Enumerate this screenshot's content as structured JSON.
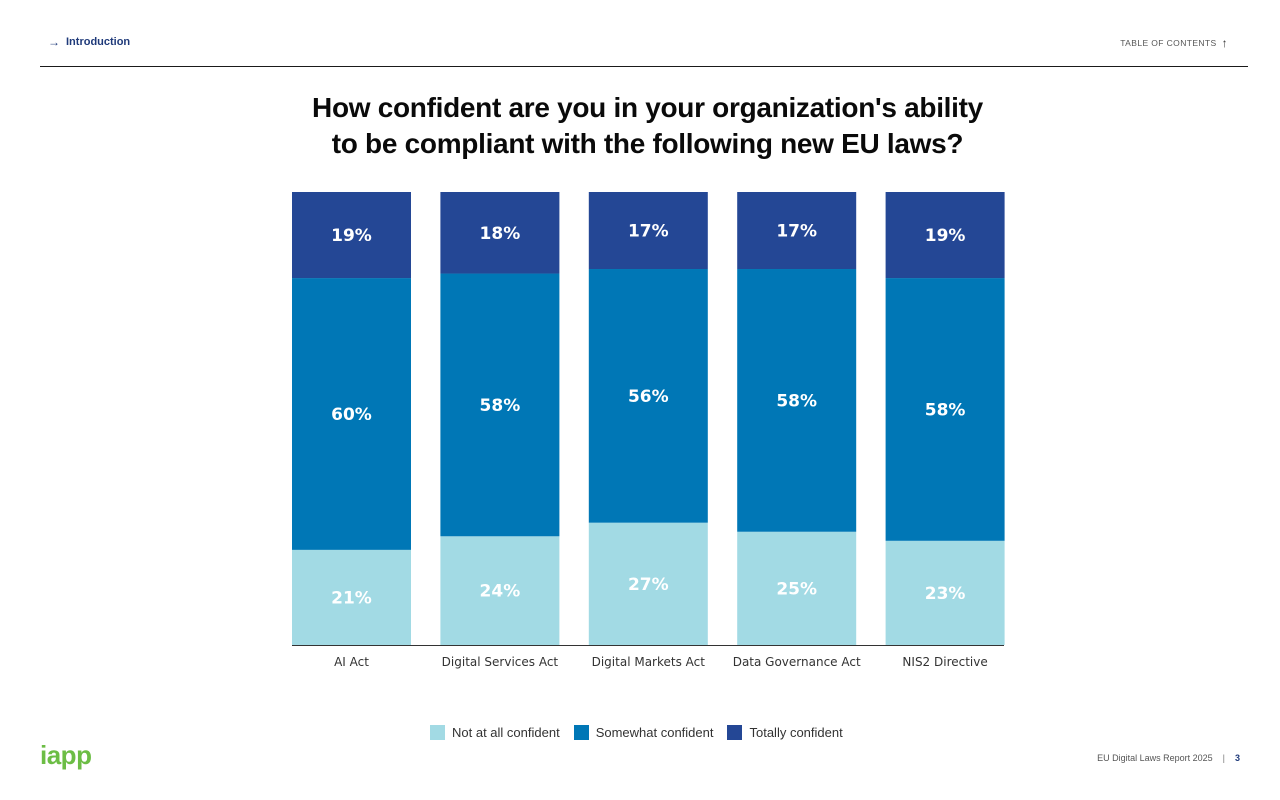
{
  "nav": {
    "intro_arrow": "→",
    "intro_label": "Introduction",
    "toc_label": "TABLE OF CONTENTS",
    "toc_arrow": "↑"
  },
  "title": {
    "line1": "How confident are you in your organization's ability",
    "line2": "to be compliant with the following new EU laws?"
  },
  "colors": {
    "not_at_all": "#a2dae4",
    "somewhat": "#0077b6",
    "totally": "#244795"
  },
  "chart_data": {
    "type": "bar",
    "stacked": true,
    "categories": [
      "AI Act",
      "Digital Services Act",
      "Digital Markets Act",
      "Data Governance Act",
      "NIS2 Directive"
    ],
    "series": [
      {
        "name": "Not at all confident",
        "values": [
          21,
          24,
          27,
          25,
          23
        ],
        "color": "#a2dae4"
      },
      {
        "name": "Somewhat confident",
        "values": [
          60,
          58,
          56,
          58,
          58
        ],
        "color": "#0077b6"
      },
      {
        "name": "Totally confident",
        "values": [
          19,
          18,
          17,
          17,
          19
        ],
        "color": "#244795"
      }
    ],
    "value_suffix": "%",
    "title": "How confident are you in your organization's ability to be compliant with the following new EU laws?",
    "xlabel": "",
    "ylabel": "",
    "legend_position": "bottom"
  },
  "legend": {
    "items": [
      {
        "label": "Not at all confident",
        "color": "#a2dae4"
      },
      {
        "label": "Somewhat confident",
        "color": "#0077b6"
      },
      {
        "label": "Totally confident",
        "color": "#244795"
      }
    ]
  },
  "logo": {
    "text": "iapp"
  },
  "footer": {
    "report": "EU Digital Laws Report 2025",
    "separator": "|",
    "page": "3"
  }
}
